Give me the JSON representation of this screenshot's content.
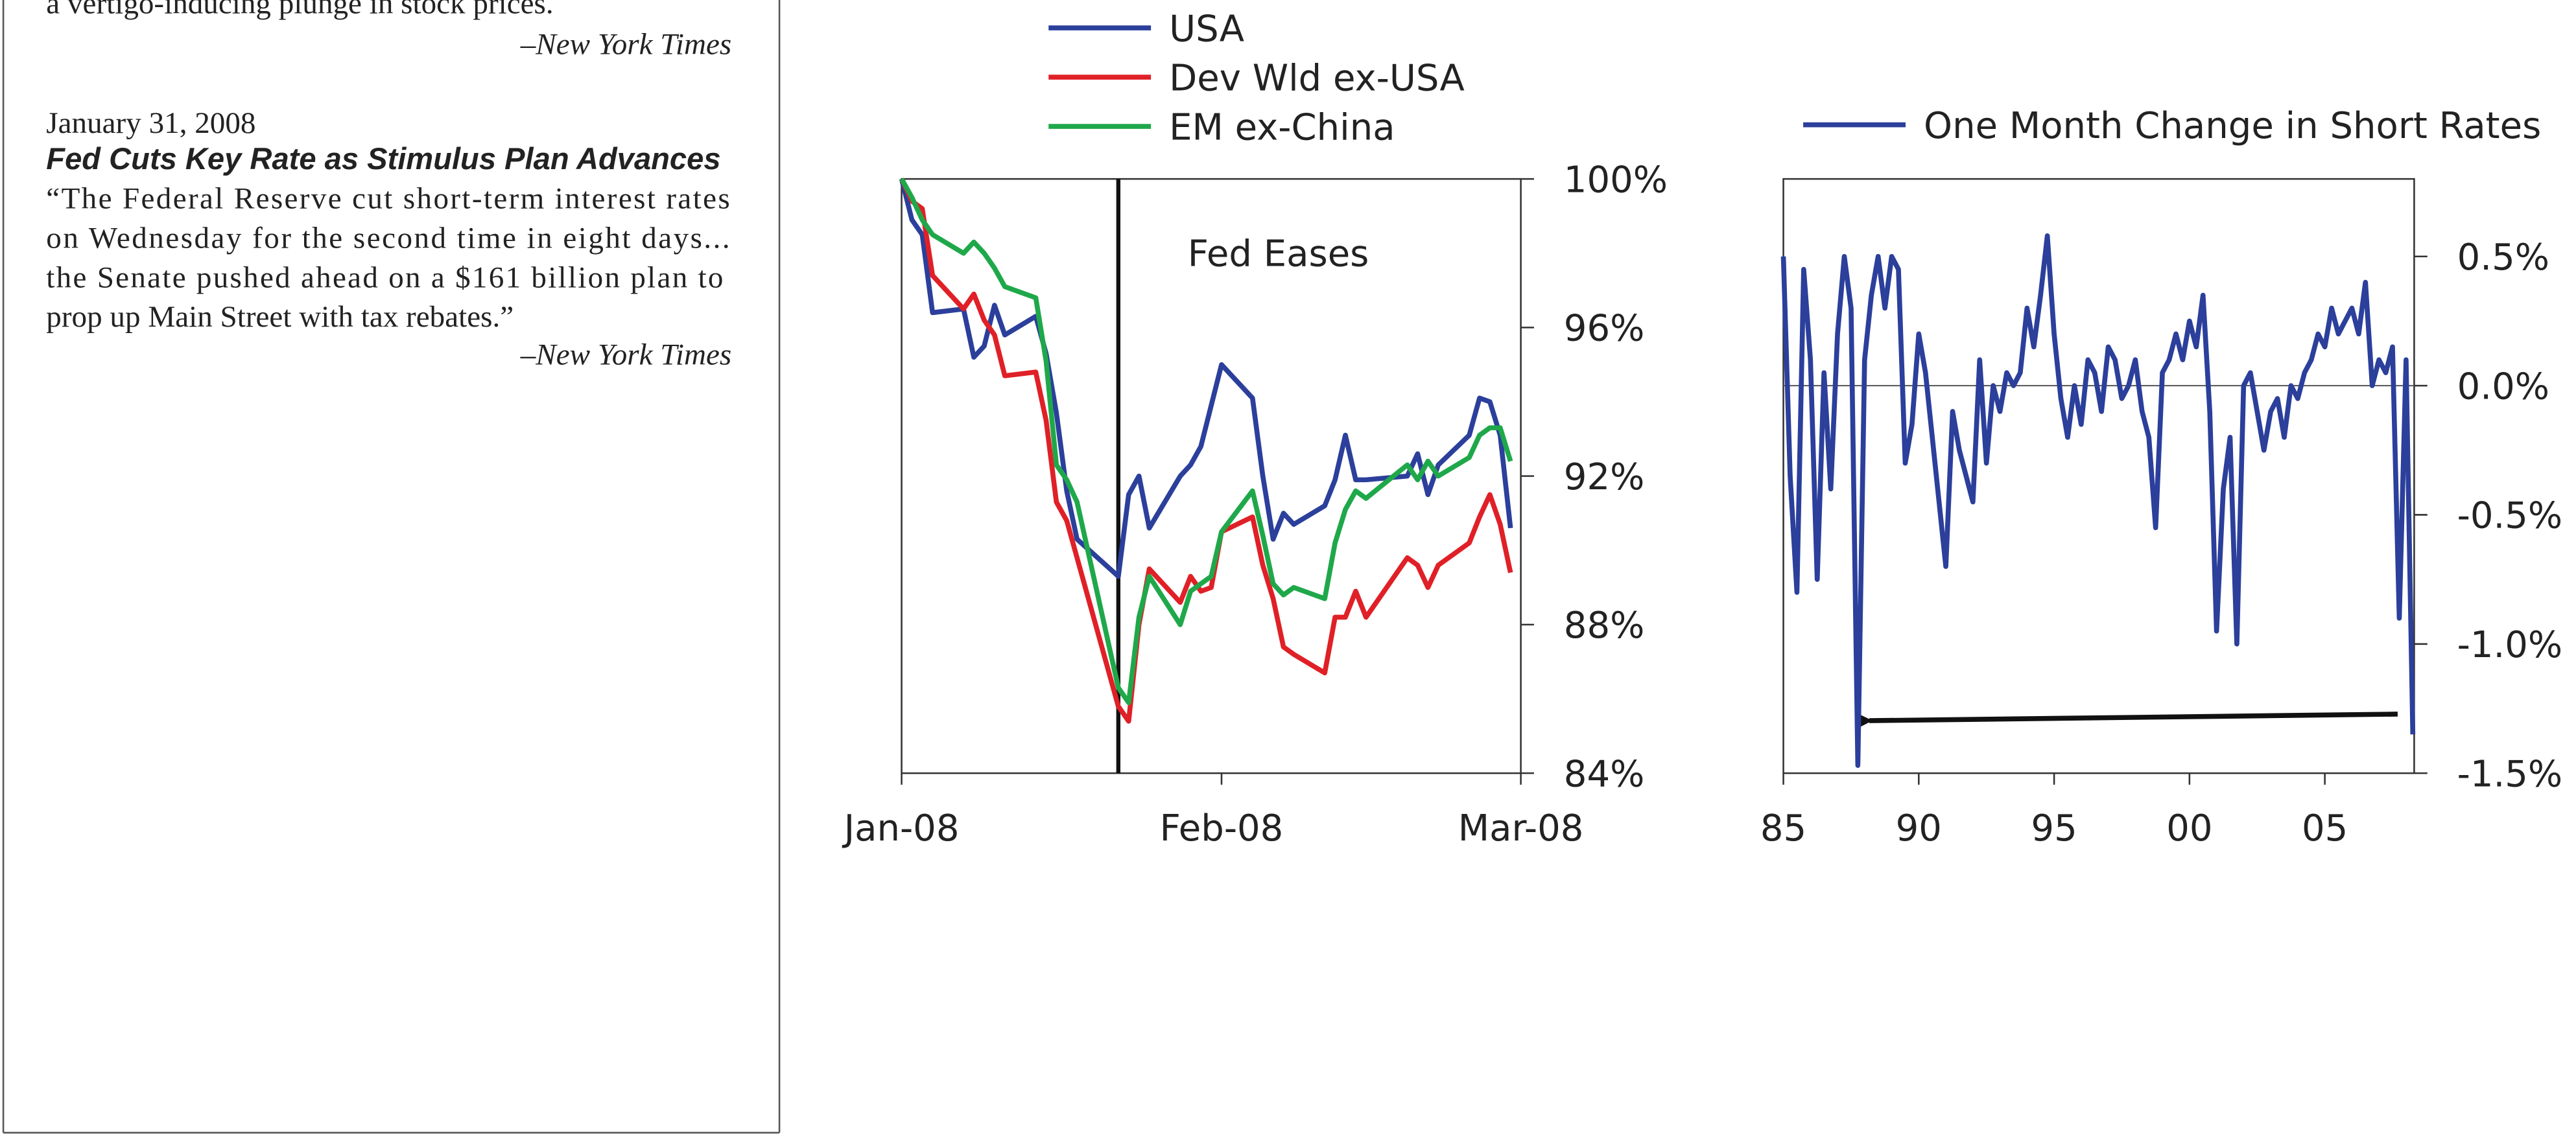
{
  "sidebar": {
    "items": [
      {
        "quote": [
          "a vertigo-inducing plunge in stock prices."
        ],
        "source": "–New York Times"
      },
      {
        "date": "January 31, 2008",
        "headline": "Fed Cuts Key Rate as Stimulus Plan Advances",
        "quote": [
          "“The Federal Reserve cut short-term interest rates",
          "on Wednesday for the second time in eight days...",
          "the Senate pushed ahead on a $161 billion plan to",
          "prop up Main Street with tax rebates.”"
        ],
        "source": "–New York Times"
      }
    ]
  },
  "chart_data": [
    {
      "type": "line",
      "x": [
        0,
        1,
        2,
        3,
        6,
        7,
        8,
        9,
        10,
        13,
        14,
        15,
        16,
        17,
        21,
        22,
        23,
        24,
        27,
        28,
        29,
        30,
        31,
        34,
        35,
        36,
        37,
        38,
        41,
        42,
        43,
        44,
        45,
        49,
        50,
        51,
        52,
        55,
        56,
        57,
        58,
        59
      ],
      "series": [
        {
          "name": "USA",
          "color": "#2b3f9b",
          "values": [
            100,
            98.9,
            98.5,
            96.4,
            96.5,
            95.2,
            95.5,
            96.6,
            95.8,
            96.3,
            95.3,
            93.7,
            91.6,
            90.3,
            89.3,
            91.5,
            92.0,
            90.6,
            92.0,
            92.3,
            92.8,
            93.9,
            95.0,
            94.1,
            92.0,
            90.3,
            91.0,
            90.7,
            91.2,
            91.9,
            93.1,
            91.9,
            91.9,
            92.0,
            92.6,
            91.5,
            92.3,
            93.1,
            94.1,
            94.0,
            93.1,
            90.6
          ]
        },
        {
          "name": "Dev Wld ex-USA",
          "color": "#e02027",
          "values": [
            100,
            99.4,
            99.2,
            97.4,
            96.5,
            96.9,
            96.2,
            95.8,
            94.7,
            94.8,
            93.5,
            91.3,
            90.8,
            89.8,
            85.8,
            85.4,
            88.0,
            89.5,
            88.6,
            89.3,
            88.9,
            89.0,
            90.5,
            90.9,
            89.6,
            88.7,
            87.4,
            87.2,
            86.7,
            88.2,
            88.2,
            88.9,
            88.2,
            89.8,
            89.6,
            89.0,
            89.6,
            90.2,
            90.9,
            91.5,
            90.7,
            89.4
          ]
        },
        {
          "name": "EM ex-China",
          "color": "#1fa84a",
          "values": [
            100,
            99.5,
            98.9,
            98.5,
            98.0,
            98.3,
            98.0,
            97.6,
            97.1,
            96.8,
            95.1,
            92.3,
            91.9,
            91.3,
            86.3,
            85.9,
            88.2,
            89.3,
            88.0,
            88.9,
            89.1,
            89.3,
            90.5,
            91.6,
            90.4,
            89.1,
            88.8,
            89.0,
            88.7,
            90.2,
            91.1,
            91.6,
            91.4,
            92.3,
            91.9,
            92.4,
            92.0,
            92.5,
            93.1,
            93.3,
            93.3,
            92.4
          ]
        }
      ],
      "xlim": [
        0,
        60
      ],
      "xticks": [
        {
          "value": 0,
          "label": "Jan-08"
        },
        {
          "value": 31,
          "label": "Feb-08"
        },
        {
          "value": 60,
          "label": "Mar-08"
        }
      ],
      "ylim": [
        84,
        100
      ],
      "yticks": [
        {
          "value": 100,
          "label": "100%"
        },
        {
          "value": 96,
          "label": "96%"
        },
        {
          "value": 92,
          "label": "92%"
        },
        {
          "value": 88,
          "label": "88%"
        },
        {
          "value": 84,
          "label": "84%"
        }
      ],
      "y_axis_side": "right",
      "annotations": [
        {
          "text": "Fed Eases",
          "x": 21
        }
      ]
    },
    {
      "type": "line",
      "x": [
        1985,
        1985.25,
        1985.5,
        1985.75,
        1986,
        1986.25,
        1986.5,
        1986.75,
        1987,
        1987.25,
        1987.5,
        1987.75,
        1988,
        1988.25,
        1988.5,
        1988.75,
        1989,
        1989.25,
        1989.5,
        1989.75,
        1990,
        1990.25,
        1990.5,
        1990.75,
        1991,
        1991.25,
        1991.5,
        1991.75,
        1992,
        1992.25,
        1992.5,
        1992.75,
        1993,
        1993.25,
        1993.5,
        1993.75,
        1994,
        1994.25,
        1994.5,
        1994.75,
        1995,
        1995.25,
        1995.5,
        1995.75,
        1996,
        1996.25,
        1996.5,
        1996.75,
        1997,
        1997.25,
        1997.5,
        1997.75,
        1998,
        1998.25,
        1998.5,
        1998.75,
        1999,
        1999.25,
        1999.5,
        1999.75,
        2000,
        2000.25,
        2000.5,
        2000.75,
        2001,
        2001.25,
        2001.5,
        2001.75,
        2002,
        2002.25,
        2002.5,
        2002.75,
        2003,
        2003.25,
        2003.5,
        2003.75,
        2004,
        2004.25,
        2004.5,
        2004.75,
        2005,
        2005.25,
        2005.5,
        2005.75,
        2006,
        2006.25,
        2006.5,
        2006.75,
        2007,
        2007.25,
        2007.5,
        2007.75,
        2008,
        2008.25
      ],
      "series": [
        {
          "name": "One Month Change in Short Rates",
          "color": "#2b3f9b",
          "values": [
            0.5,
            -0.35,
            -0.8,
            0.45,
            0.1,
            -0.75,
            0.05,
            -0.4,
            0.2,
            0.5,
            0.3,
            -1.47,
            0.1,
            0.35,
            0.5,
            0.3,
            0.5,
            0.45,
            -0.3,
            -0.15,
            0.2,
            0.05,
            -0.2,
            -0.45,
            -0.7,
            -0.1,
            -0.25,
            -0.35,
            -0.45,
            0.1,
            -0.3,
            0.0,
            -0.1,
            0.05,
            0.0,
            0.05,
            0.3,
            0.15,
            0.35,
            0.58,
            0.2,
            -0.05,
            -0.2,
            0.0,
            -0.15,
            0.1,
            0.05,
            -0.1,
            0.15,
            0.1,
            -0.05,
            0.0,
            0.1,
            -0.1,
            -0.2,
            -0.55,
            0.05,
            0.1,
            0.2,
            0.1,
            0.25,
            0.15,
            0.35,
            -0.1,
            -0.95,
            -0.4,
            -0.2,
            -1.0,
            0.0,
            0.05,
            -0.1,
            -0.25,
            -0.1,
            -0.05,
            -0.2,
            0.0,
            -0.05,
            0.05,
            0.1,
            0.2,
            0.15,
            0.3,
            0.2,
            0.25,
            0.3,
            0.2,
            0.4,
            0.0,
            0.1,
            0.05,
            0.15,
            -0.9,
            0.1,
            -1.35
          ]
        }
      ],
      "xlim": [
        1985,
        2008.3
      ],
      "xticks": [
        {
          "value": 1985,
          "label": "85"
        },
        {
          "value": 1990,
          "label": "90"
        },
        {
          "value": 1995,
          "label": "95"
        },
        {
          "value": 2000,
          "label": "00"
        },
        {
          "value": 2005,
          "label": "05"
        }
      ],
      "ylim": [
        -1.5,
        0.8
      ],
      "yticks": [
        {
          "value": 0.5,
          "label": "0.5%"
        },
        {
          "value": 0,
          "label": "0.0%"
        },
        {
          "value": -0.5,
          "label": "-0.5%"
        },
        {
          "value": -1,
          "label": "-1.0%"
        },
        {
          "value": -1.5,
          "label": "-1.5%"
        }
      ],
      "y_axis_side": "right",
      "zero_line": true
    }
  ]
}
